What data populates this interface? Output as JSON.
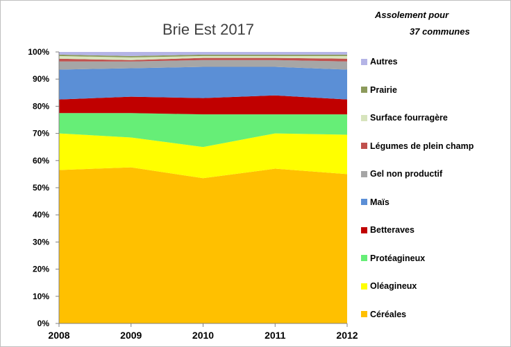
{
  "chart_data": {
    "type": "area",
    "stacked": "percent",
    "title": "Brie Est 2017",
    "subtitle_line1": "Assolement pour",
    "subtitle_line2": "37 communes",
    "xlabel": "",
    "ylabel": "",
    "x": [
      "2008",
      "2009",
      "2010",
      "2011",
      "2012"
    ],
    "ylim": [
      0,
      100
    ],
    "y_ticks": [
      "0%",
      "10%",
      "20%",
      "30%",
      "40%",
      "50%",
      "60%",
      "70%",
      "80%",
      "90%",
      "100%"
    ],
    "legend_position": "right",
    "series": [
      {
        "name": "Céréales",
        "color": "#ffc000",
        "values": [
          56.5,
          57.5,
          53.5,
          57,
          55
        ]
      },
      {
        "name": "Oléagineux",
        "color": "#ffff00",
        "values": [
          13.5,
          11,
          11.5,
          13,
          14.5
        ]
      },
      {
        "name": "Protéagineux",
        "color": "#66ee77",
        "values": [
          7.5,
          9,
          12,
          7,
          7.5
        ]
      },
      {
        "name": "Betteraves",
        "color": "#c00000",
        "values": [
          5,
          6,
          6,
          7,
          5.5
        ]
      },
      {
        "name": "Maïs",
        "color": "#5b8fd6",
        "values": [
          11,
          10.5,
          11.5,
          10.5,
          11
        ]
      },
      {
        "name": "Gel non productif",
        "color": "#a6a6a6",
        "values": [
          3,
          2.5,
          2.5,
          2.5,
          3
        ]
      },
      {
        "name": "Légumes de plein champ",
        "color": "#c0504d",
        "values": [
          1,
          0.5,
          0.8,
          0.8,
          1
        ]
      },
      {
        "name": "Surface fourragère",
        "color": "#d7e4bd",
        "values": [
          1,
          1,
          0.7,
          0.7,
          1
        ]
      },
      {
        "name": "Prairie",
        "color": "#8c9a5b",
        "values": [
          0.5,
          0.5,
          0.5,
          0.5,
          0.5
        ]
      },
      {
        "name": "Autres",
        "color": "#b4b4e6",
        "values": [
          1,
          1.5,
          1,
          1,
          1
        ]
      }
    ]
  }
}
